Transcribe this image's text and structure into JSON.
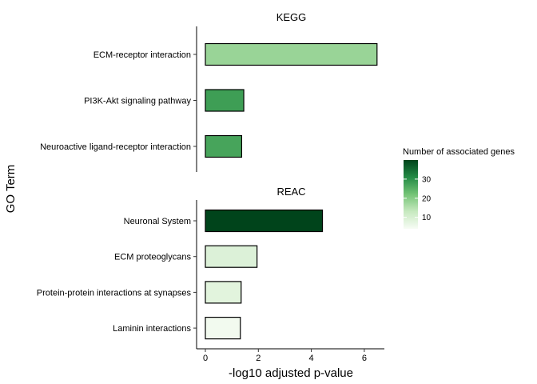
{
  "chart_data": {
    "type": "bar",
    "orientation": "horizontal",
    "xlabel": "-log10 adjusted p-value",
    "ylabel": "GO Term",
    "xlim": [
      -0.35,
      6.8
    ],
    "x_ticks": [
      0,
      2,
      4,
      6
    ],
    "grid": false,
    "legend": {
      "title": "Number of associated genes",
      "placement": "right",
      "type": "colorbar",
      "min": 4,
      "max": 40,
      "ticks": [
        10,
        20,
        30
      ],
      "color_low": "#f7fcf5",
      "color_high": "#00441b"
    },
    "panels": [
      {
        "title": "KEGG",
        "categories": [
          "ECM-receptor interaction",
          "PI3K-Akt signaling pathway",
          "Neuroactive ligand-receptor interaction"
        ],
        "values": [
          6.48,
          1.45,
          1.37
        ],
        "genes": [
          18,
          28,
          27
        ]
      },
      {
        "title": "REAC",
        "categories": [
          "Neuronal System",
          "ECM proteoglycans",
          "Protein-protein interactions at synapses",
          "Laminin interactions"
        ],
        "values": [
          4.42,
          1.95,
          1.35,
          1.32
        ],
        "genes": [
          40,
          9,
          8,
          5
        ]
      }
    ]
  }
}
